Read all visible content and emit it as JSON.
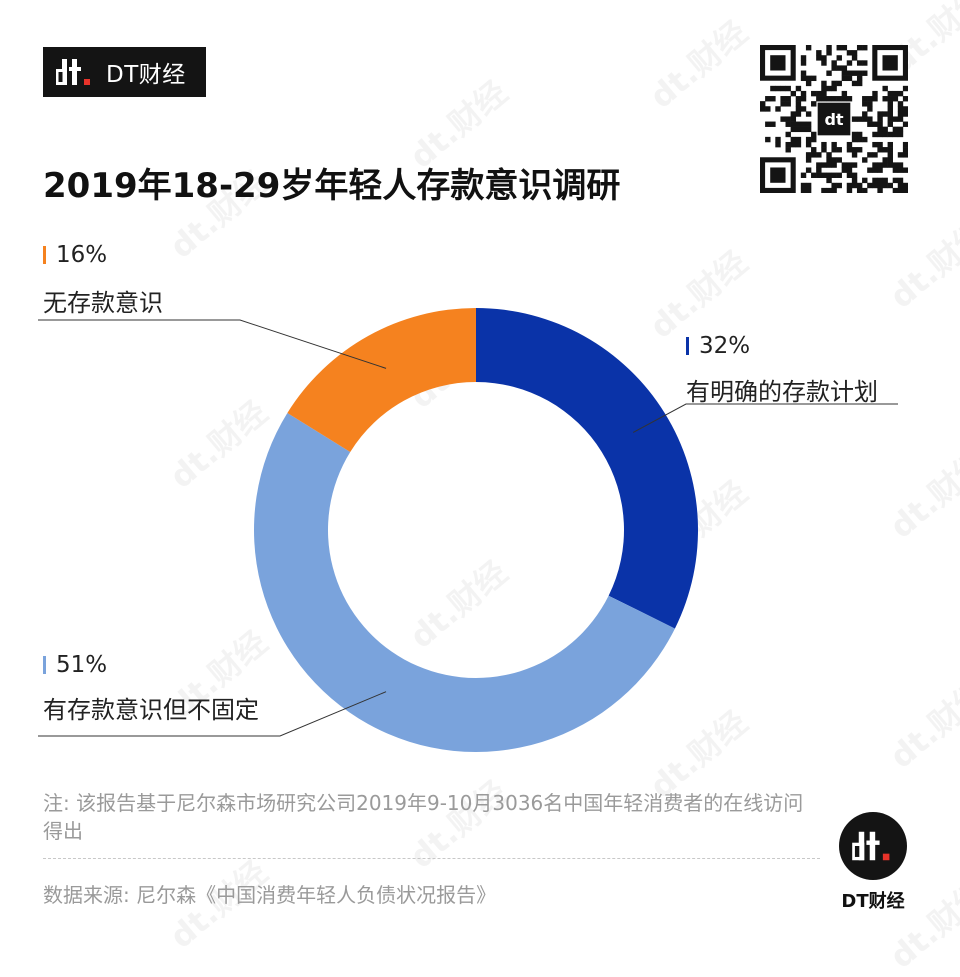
{
  "brand": {
    "badge_text": "DT财经",
    "logo_icon": "dt-logo-icon",
    "bottom_logo_text": "DT财经",
    "watermark_text": "dt.财经"
  },
  "title": "2019年18-29岁年轻人存款意识调研",
  "colors": {
    "dark_blue": "#0a33a8",
    "light_blue": "#7aa3dc",
    "orange": "#f5821f",
    "brand_black": "#141414",
    "brand_red": "#e8332a"
  },
  "chart_data": {
    "type": "pie",
    "donut": true,
    "slices": [
      {
        "label": "有明确的存款计划",
        "value": 32,
        "display": "32%",
        "color": "#0a33a8"
      },
      {
        "label": "有存款意识但不固定",
        "value": 51,
        "display": "51%",
        "color": "#7aa3dc"
      },
      {
        "label": "无存款意识",
        "value": 16,
        "display": "16%",
        "color": "#f5821f"
      }
    ]
  },
  "note": "注: 该报告基于尼尔森市场研究公司2019年9-10月3036名中国年轻消费者的在线访问得出",
  "source": "数据来源: 尼尔森《中国消费年轻人负债状况报告》"
}
